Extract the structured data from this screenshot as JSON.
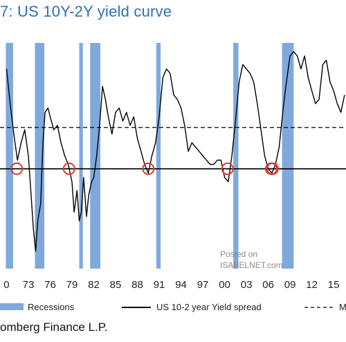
{
  "title": "7: US 10Y-2Y yield curve",
  "source": "omberg Finance L.P.",
  "watermark": {
    "line1": "Posted on",
    "line2": "ISABELNET.com"
  },
  "colors": {
    "title": "#2f6fb6",
    "recession": "#7fa9dc",
    "spread_line": "#000000",
    "marker": "#e0362c",
    "dashed": "#000000"
  },
  "chart_data": {
    "type": "line",
    "title": "",
    "x_tick_labels": [
      "0",
      "73",
      "76",
      "79",
      "82",
      "85",
      "88",
      "91",
      "94",
      "97",
      "00",
      "03",
      "06",
      "09",
      "12",
      "15"
    ],
    "x_tick_years": [
      1970,
      1973,
      1976,
      1979,
      1982,
      1985,
      1988,
      1991,
      1994,
      1997,
      2000,
      2003,
      2006,
      2009,
      2012,
      2015
    ],
    "xlim": [
      1969.1,
      2016.7
    ],
    "ylim": [
      -2.3,
      2.9
    ],
    "reference_lines": [
      {
        "style": "solid",
        "value": 0
      },
      {
        "style": "dashed",
        "value": 0.95
      }
    ],
    "recessions": [
      [
        1969.9,
        1970.9
      ],
      [
        1973.9,
        1975.2
      ],
      [
        1980.0,
        1980.5
      ],
      [
        1981.5,
        1982.9
      ],
      [
        1990.6,
        1991.2
      ],
      [
        2001.2,
        2001.9
      ],
      [
        2007.9,
        2009.5
      ]
    ],
    "inversion_markers": [
      1971.4,
      1978.6,
      1989.5,
      2000.4,
      2006.4,
      2006.6
    ],
    "series": [
      {
        "name": "US 10-2 year Yield spread",
        "x": [
          1970.0,
          1970.5,
          1971.0,
          1971.5,
          1972.0,
          1972.5,
          1973.0,
          1973.3,
          1973.7,
          1974.0,
          1974.3,
          1974.7,
          1975.0,
          1975.3,
          1975.7,
          1976.0,
          1976.5,
          1977.0,
          1977.5,
          1978.0,
          1978.5,
          1979.0,
          1979.3,
          1979.7,
          1980.0,
          1980.3,
          1980.6,
          1981.0,
          1981.3,
          1981.7,
          1982.0,
          1982.4,
          1982.8,
          1983.2,
          1983.6,
          1984.0,
          1984.5,
          1985.0,
          1985.5,
          1986.0,
          1986.5,
          1987.0,
          1987.5,
          1988.0,
          1988.5,
          1989.0,
          1989.5,
          1990.0,
          1990.5,
          1991.0,
          1991.5,
          1992.0,
          1992.5,
          1993.0,
          1993.5,
          1994.0,
          1994.5,
          1995.0,
          1995.5,
          1996.0,
          1996.5,
          1997.0,
          1997.5,
          1998.0,
          1998.5,
          1999.0,
          1999.5,
          2000.0,
          2000.5,
          2001.0,
          2001.5,
          2002.0,
          2002.5,
          2003.0,
          2003.5,
          2004.0,
          2004.5,
          2005.0,
          2005.5,
          2006.0,
          2006.5,
          2007.0,
          2007.5,
          2008.0,
          2008.5,
          2009.0,
          2009.5,
          2010.0,
          2010.5,
          2011.0,
          2011.5,
          2012.0,
          2012.5,
          2013.0,
          2013.5,
          2014.0,
          2014.5,
          2015.0,
          2015.5,
          2016.0,
          2016.5
        ],
        "y": [
          2.3,
          1.5,
          0.8,
          0.2,
          0.6,
          0.9,
          0.3,
          -0.4,
          -1.4,
          -1.9,
          -1.2,
          -0.8,
          0.6,
          1.3,
          1.4,
          1.2,
          0.9,
          1.0,
          0.6,
          0.3,
          0.1,
          -0.3,
          -1.0,
          -0.5,
          -1.2,
          -1.0,
          -0.2,
          -1.1,
          -0.6,
          -0.3,
          -0.2,
          0.3,
          1.0,
          1.9,
          1.6,
          1.2,
          0.8,
          1.3,
          1.4,
          1.1,
          1.3,
          1.0,
          1.2,
          0.7,
          0.4,
          0.1,
          -0.1,
          0.3,
          0.6,
          1.2,
          2.1,
          2.3,
          2.2,
          1.7,
          1.6,
          1.4,
          1.0,
          0.4,
          0.6,
          0.5,
          0.4,
          0.3,
          0.2,
          0.1,
          0.1,
          0.2,
          0.2,
          -0.2,
          -0.3,
          0.3,
          1.1,
          2.0,
          2.4,
          2.3,
          2.2,
          2.0,
          1.5,
          0.9,
          0.3,
          0.0,
          -0.1,
          0.1,
          0.5,
          1.3,
          2.0,
          2.6,
          2.7,
          2.6,
          2.3,
          2.6,
          2.1,
          1.8,
          1.5,
          1.6,
          2.4,
          2.5,
          2.0,
          1.8,
          1.5,
          1.3,
          1.7
        ]
      }
    ],
    "legend": [
      {
        "label": "Recessions",
        "kind": "bar"
      },
      {
        "label": "US 10-2 year Yield spread",
        "kind": "solid"
      },
      {
        "label": "M",
        "kind": "dashed"
      }
    ]
  }
}
